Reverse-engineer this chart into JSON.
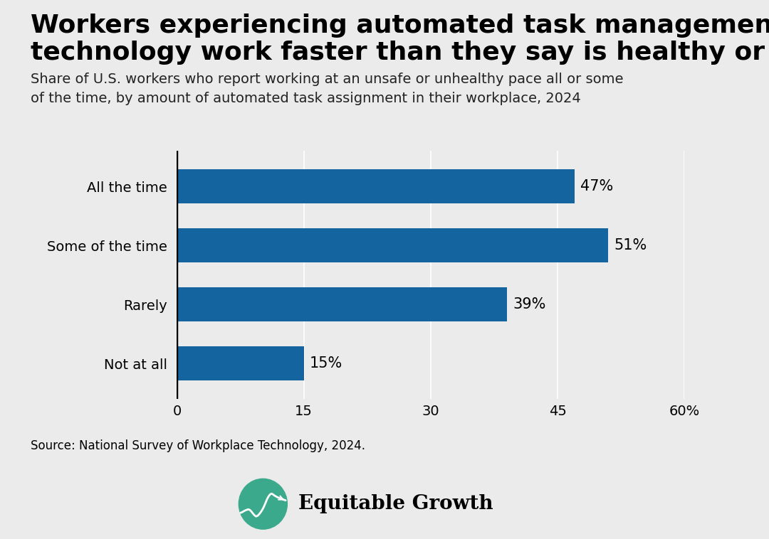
{
  "title_line1": "Workers experiencing automated task management",
  "title_line2": "technology work faster than they say is healthy or safe",
  "subtitle": "Share of U.S. workers who report working at an unsafe or unhealthy pace all or some\nof the time, by amount of automated task assignment in their workplace, 2024",
  "categories": [
    "All the time",
    "Some of the time",
    "Rarely",
    "Not at all"
  ],
  "values": [
    47,
    51,
    39,
    15
  ],
  "bar_color": "#1464A0",
  "background_color": "#EBEBEB",
  "xlim": [
    0,
    60
  ],
  "xticks": [
    0,
    15,
    30,
    45,
    60
  ],
  "xtick_labels": [
    "0",
    "15",
    "30",
    "45",
    "60%"
  ],
  "source_text": "Source: National Survey of Workplace Technology, 2024.",
  "title_fontsize": 26,
  "subtitle_fontsize": 14,
  "category_fontsize": 14,
  "value_label_fontsize": 15,
  "xtick_fontsize": 14,
  "source_fontsize": 12,
  "bar_height": 0.58,
  "logo_text": "Equitable Growth",
  "logo_color": "#3BAA8C",
  "logo_fontsize": 20
}
